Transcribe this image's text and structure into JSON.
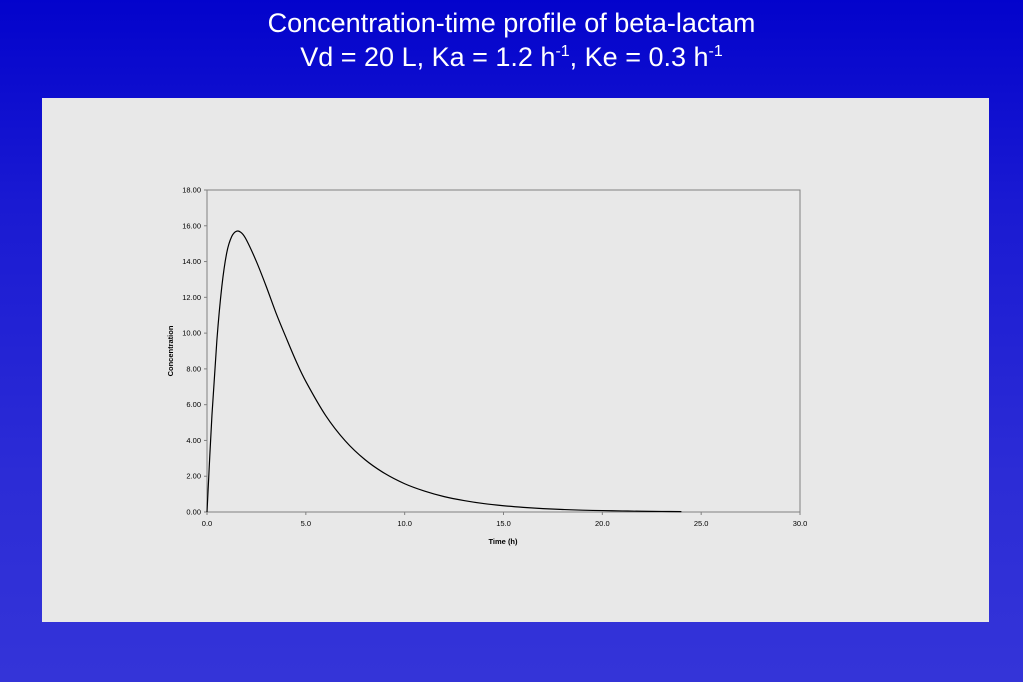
{
  "slide": {
    "title_line1": "Concentration-time profile of beta-lactam",
    "title_line2_a": "Vd = 20 L, Ka = 1.2 h",
    "title_line2_sup1": "-1",
    "title_line2_b": ", Ke = 0.3 h",
    "title_line2_sup2": "-1"
  },
  "colors": {
    "background_top": "#0303cc",
    "background_bottom": "#3434d8",
    "panel": "#e8e8e8",
    "line": "#000000"
  },
  "chart_data": {
    "type": "line",
    "title": "",
    "xlabel": "Time (h)",
    "ylabel": "Concentration",
    "xlim": [
      0,
      30
    ],
    "ylim": [
      0,
      18
    ],
    "x_ticks": [
      "0.0",
      "5.0",
      "10.0",
      "15.0",
      "20.0",
      "25.0",
      "30.0"
    ],
    "y_ticks": [
      "0.00",
      "2.00",
      "4.00",
      "6.00",
      "8.00",
      "10.00",
      "12.00",
      "14.00",
      "16.00",
      "18.00"
    ],
    "grid": false,
    "legend": "none",
    "series": [
      {
        "x": [
          0,
          0.25,
          0.5,
          0.75,
          1.0,
          1.25,
          1.5,
          1.75,
          2.0,
          2.5,
          3.0,
          3.5,
          4.0,
          4.5,
          5.0,
          6.0,
          7.0,
          8.0,
          9.0,
          10.0,
          11.0,
          12.0,
          13.0,
          14.0,
          15.0,
          16.0,
          17.0,
          18.0,
          19.0,
          20.0,
          21.0,
          22.0,
          23.0,
          24.0
        ],
        "y": [
          0,
          5.4,
          9.6,
          12.6,
          14.5,
          15.4,
          15.7,
          15.6,
          15.2,
          14.0,
          12.6,
          11.1,
          9.75,
          8.45,
          7.3,
          5.4,
          3.97,
          2.92,
          2.15,
          1.58,
          1.17,
          0.86,
          0.64,
          0.47,
          0.35,
          0.26,
          0.19,
          0.14,
          0.1,
          0.08,
          0.06,
          0.04,
          0.03,
          0.02
        ]
      }
    ]
  }
}
